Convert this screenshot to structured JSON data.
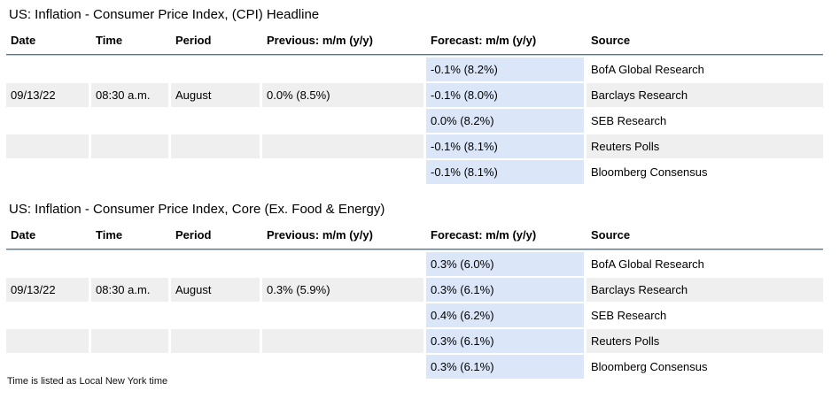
{
  "page": {
    "footnote": "Time is listed as Local New York time"
  },
  "colors": {
    "forecast_column_bg": "#dbe7f9",
    "stripe_row_bg": "#efefef",
    "header_rule_top": "#54749e",
    "header_rule_bottom": "#b7cbe0",
    "text": "#000000"
  },
  "tables": [
    {
      "title": "US: Inflation - Consumer Price Index, (CPI) Headline",
      "columns": [
        "Date",
        "Time",
        "Period",
        "Previous: m/m (y/y)",
        "Forecast: m/m (y/y)",
        "Source"
      ],
      "rows": [
        {
          "date": "",
          "time": "",
          "period": "",
          "previous": "",
          "forecast": "-0.1% (8.2%)",
          "source": "BofA Global Research"
        },
        {
          "date": "09/13/22",
          "time": "08:30 a.m.",
          "period": "August",
          "previous": "0.0% (8.5%)",
          "forecast": "-0.1% (8.0%)",
          "source": "Barclays Research"
        },
        {
          "date": "",
          "time": "",
          "period": "",
          "previous": "",
          "forecast": "0.0% (8.2%)",
          "source": "SEB Research"
        },
        {
          "date": "",
          "time": "",
          "period": "",
          "previous": "",
          "forecast": "-0.1% (8.1%)",
          "source": "Reuters Polls"
        },
        {
          "date": "",
          "time": "",
          "period": "",
          "previous": "",
          "forecast": "-0.1% (8.1%)",
          "source": "Bloomberg Consensus"
        }
      ]
    },
    {
      "title": "US: Inflation - Consumer Price Index, Core (Ex. Food & Energy)",
      "columns": [
        "Date",
        "Time",
        "Period",
        "Previous: m/m (y/y)",
        "Forecast: m/m (y/y)",
        "Source"
      ],
      "rows": [
        {
          "date": "",
          "time": "",
          "period": "",
          "previous": "",
          "forecast": "0.3% (6.0%)",
          "source": "BofA Global Research"
        },
        {
          "date": "09/13/22",
          "time": "08:30 a.m.",
          "period": "August",
          "previous": "0.3% (5.9%)",
          "forecast": "0.3% (6.1%)",
          "source": "Barclays Research"
        },
        {
          "date": "",
          "time": "",
          "period": "",
          "previous": "",
          "forecast": "0.4% (6.2%)",
          "source": "SEB Research"
        },
        {
          "date": "",
          "time": "",
          "period": "",
          "previous": "",
          "forecast": "0.3% (6.1%)",
          "source": "Reuters Polls"
        },
        {
          "date": "",
          "time": "",
          "period": "",
          "previous": "",
          "forecast": "0.3% (6.1%)",
          "source": "Bloomberg Consensus"
        }
      ]
    }
  ]
}
